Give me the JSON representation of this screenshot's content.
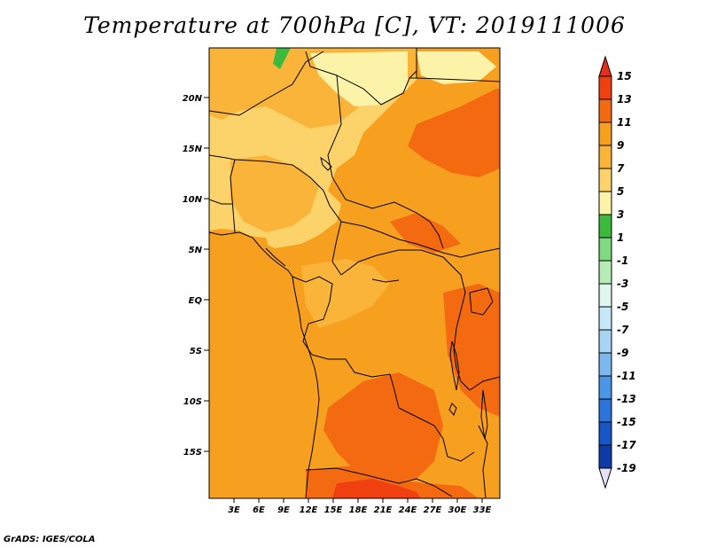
{
  "title": "Temperature at 700hPa [C], VT: 2019111006",
  "credit": "GrADS: IGES/COLA",
  "map": {
    "region": "Central Africa",
    "lat_labels": [
      "20N",
      "15N",
      "10N",
      "5N",
      "EQ",
      "5S",
      "10S",
      "15S"
    ],
    "lon_labels": [
      "3E",
      "6E",
      "9E",
      "12E",
      "15E",
      "18E",
      "21E",
      "24E",
      "27E",
      "30E",
      "33E"
    ]
  },
  "colorbar": {
    "labels": [
      "15",
      "13",
      "11",
      "9",
      "7",
      "5",
      "3",
      "1",
      "-1",
      "-3",
      "-5",
      "-7",
      "-9",
      "-11",
      "-13",
      "-15",
      "-17",
      "-19"
    ],
    "colors": [
      "#e02010",
      "#f04010",
      "#f46a10",
      "#f7a020",
      "#fab43a",
      "#fcd36a",
      "#fdf3a8",
      "#3cba3c",
      "#80d980",
      "#b6ecb6",
      "#dff6f0",
      "#c6e8f8",
      "#a8d4f4",
      "#7ab8ee",
      "#4c96e6",
      "#2a74dc",
      "#1656c8",
      "#0e3aa6",
      "#0a1a78"
    ],
    "over_color": "#e0301c",
    "under_color": "#e6e0f8"
  }
}
